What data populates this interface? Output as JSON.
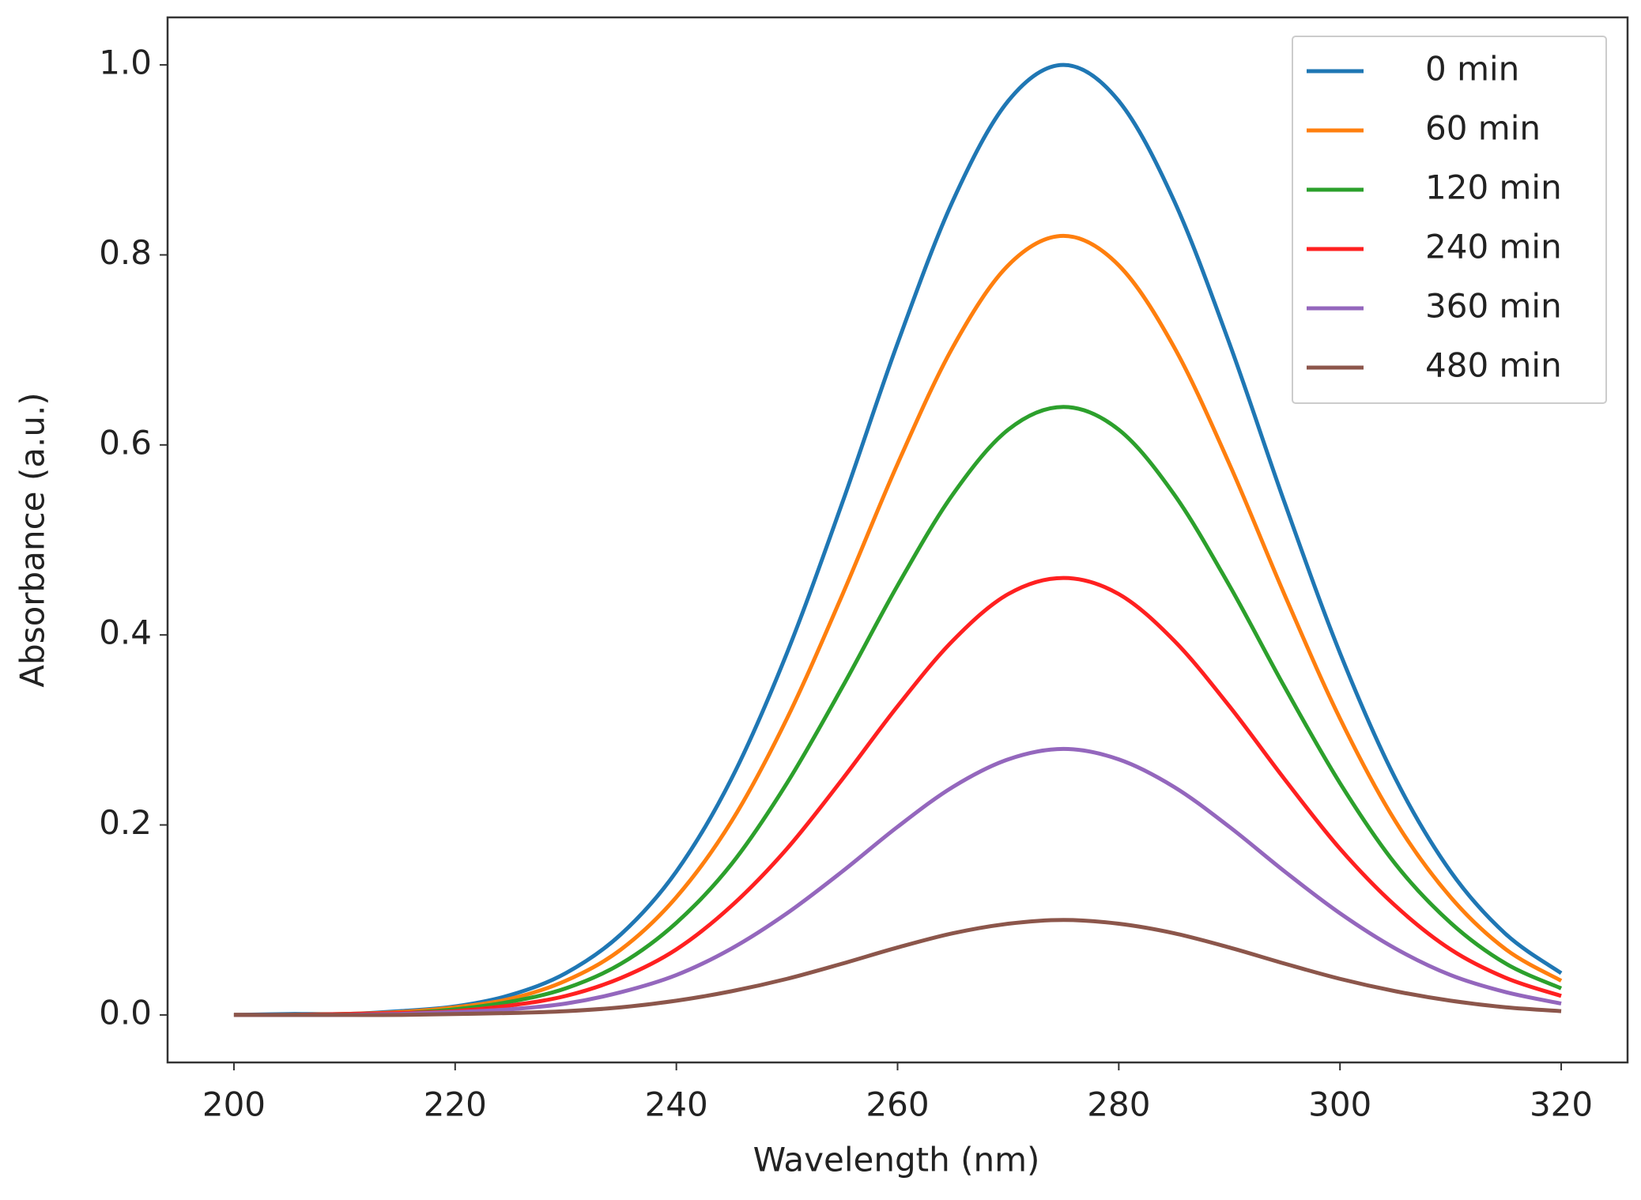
{
  "chart_data": {
    "type": "line",
    "xlabel": "Wavelength (nm)",
    "ylabel": "Absorbance (a.u.)",
    "x": [
      200,
      205,
      210,
      215,
      220,
      225,
      230,
      235,
      240,
      245,
      250,
      255,
      260,
      265,
      270,
      275,
      280,
      285,
      290,
      295,
      300,
      305,
      310,
      315,
      320
    ],
    "series": [
      {
        "name": "0 min",
        "color": "#1f77b4",
        "values": [
          0.0,
          0.001,
          0.001,
          0.004,
          0.009,
          0.021,
          0.044,
          0.085,
          0.151,
          0.249,
          0.381,
          0.539,
          0.707,
          0.857,
          0.962,
          1.0,
          0.962,
          0.857,
          0.707,
          0.539,
          0.381,
          0.249,
          0.151,
          0.085,
          0.044
        ]
      },
      {
        "name": "60 min",
        "color": "#ff7f0e",
        "values": [
          0.0,
          0.0,
          0.001,
          0.003,
          0.008,
          0.017,
          0.036,
          0.069,
          0.124,
          0.204,
          0.312,
          0.442,
          0.58,
          0.703,
          0.789,
          0.82,
          0.789,
          0.703,
          0.58,
          0.442,
          0.312,
          0.204,
          0.124,
          0.069,
          0.036
        ]
      },
      {
        "name": "120 min",
        "color": "#2ca02c",
        "values": [
          0.0,
          0.0,
          0.001,
          0.002,
          0.006,
          0.014,
          0.028,
          0.054,
          0.097,
          0.159,
          0.244,
          0.345,
          0.452,
          0.548,
          0.616,
          0.64,
          0.616,
          0.548,
          0.452,
          0.345,
          0.244,
          0.159,
          0.097,
          0.054,
          0.028
        ]
      },
      {
        "name": "240 min",
        "color": "#ff2020",
        "values": [
          0.0,
          0.0,
          0.001,
          0.002,
          0.004,
          0.01,
          0.02,
          0.039,
          0.069,
          0.115,
          0.175,
          0.248,
          0.325,
          0.394,
          0.443,
          0.46,
          0.443,
          0.394,
          0.325,
          0.248,
          0.175,
          0.115,
          0.069,
          0.039,
          0.02
        ]
      },
      {
        "name": "360 min",
        "color": "#9467bd",
        "values": [
          0.0,
          0.0,
          0.0,
          0.001,
          0.003,
          0.006,
          0.012,
          0.024,
          0.042,
          0.07,
          0.107,
          0.151,
          0.198,
          0.24,
          0.269,
          0.28,
          0.269,
          0.24,
          0.198,
          0.151,
          0.107,
          0.07,
          0.042,
          0.024,
          0.012
        ]
      },
      {
        "name": "480 min",
        "color": "#8c564b",
        "values": [
          0.0,
          0.0,
          0.0,
          0.0,
          0.001,
          0.002,
          0.004,
          0.008,
          0.015,
          0.025,
          0.038,
          0.054,
          0.071,
          0.086,
          0.096,
          0.1,
          0.096,
          0.086,
          0.071,
          0.054,
          0.038,
          0.025,
          0.015,
          0.008,
          0.004
        ]
      }
    ],
    "xlim": [
      194,
      326
    ],
    "xticks": [
      200,
      220,
      240,
      260,
      280,
      300,
      320
    ],
    "ylim": [
      -0.05,
      1.05
    ],
    "yticks": [
      {
        "value": 0,
        "label": "0.0"
      },
      0.2,
      0.4,
      0.6,
      0.8,
      {
        "value": 1,
        "label": "1.0"
      }
    ],
    "grid": false,
    "legend": "upper right"
  }
}
